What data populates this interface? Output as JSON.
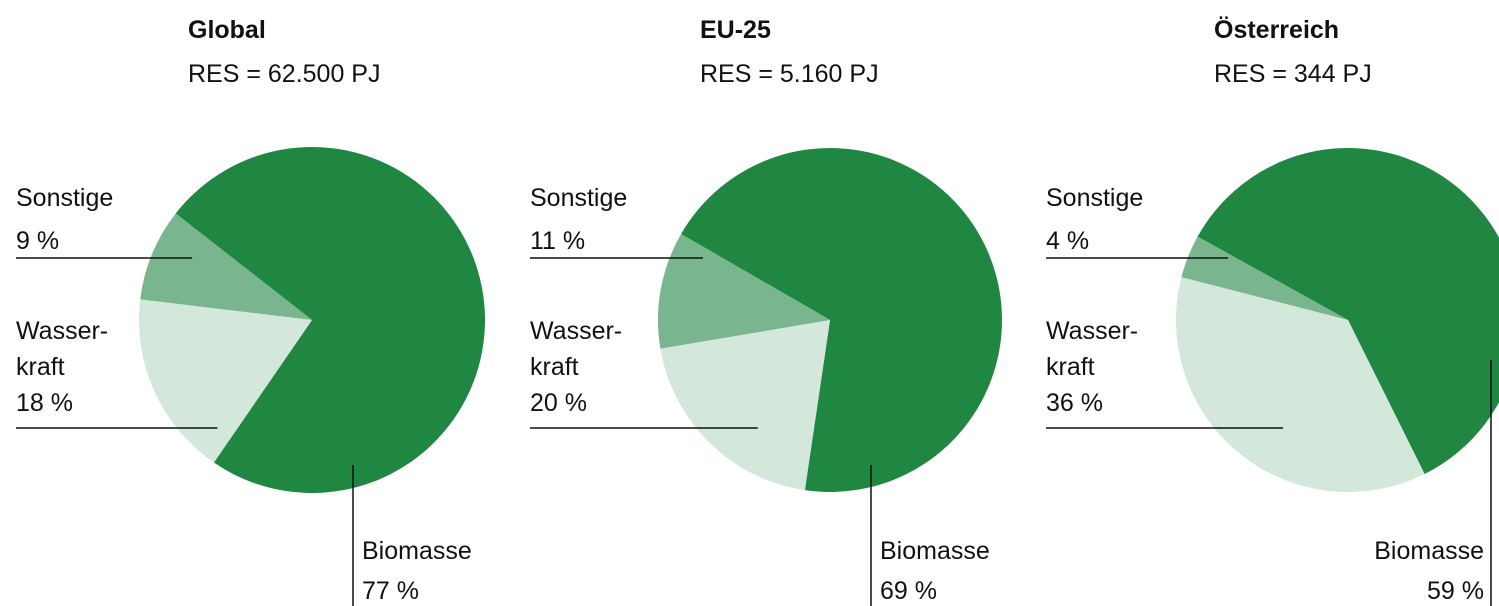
{
  "chart_data": [
    {
      "type": "pie",
      "title": "Global",
      "subtitle": "RES = 62.500 PJ",
      "categories": [
        "Biomasse",
        "Wasser-\nkraft",
        "Sonstige"
      ],
      "values": [
        77,
        18,
        9
      ],
      "value_labels": [
        "77 %",
        "18 %",
        "9 %"
      ],
      "colors": [
        "#1f8742",
        "#d3e7da",
        "#79b58e"
      ]
    },
    {
      "type": "pie",
      "title": "EU-25",
      "subtitle": "RES = 5.160 PJ",
      "categories": [
        "Biomasse",
        "Wasser-\nkraft",
        "Sonstige"
      ],
      "values": [
        69,
        20,
        11
      ],
      "value_labels": [
        "69 %",
        "20 %",
        "11 %"
      ],
      "colors": [
        "#1f8742",
        "#d3e7da",
        "#79b58e"
      ]
    },
    {
      "type": "pie",
      "title": "Österreich",
      "subtitle": "RES = 344 PJ",
      "categories": [
        "Biomasse",
        "Wasser-\nkraft",
        "Sonstige"
      ],
      "values": [
        59,
        36,
        4
      ],
      "value_labels": [
        "59 %",
        "36 %",
        "4 %"
      ],
      "colors": [
        "#1f8742",
        "#d3e7da",
        "#79b58e"
      ]
    }
  ]
}
